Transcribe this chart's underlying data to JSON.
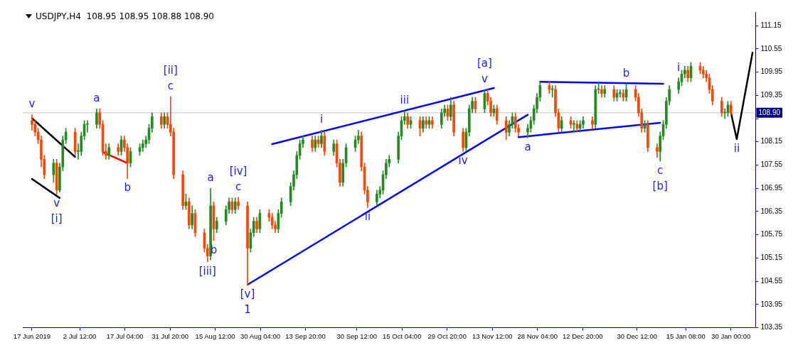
{
  "chart_data": {
    "type": "candlestick",
    "title": "USDJPY,H4  108.95 108.95 108.88 108.90",
    "xlim": [
      "2019-06-14",
      "2020-02-07"
    ],
    "xticks": [
      {
        "value": "2019-06-17",
        "label": "17 Jun 2019"
      },
      {
        "value": "2019-07-02T12:00",
        "label": "2 Jul 12:00"
      },
      {
        "value": "2019-07-17T04:00",
        "label": "17 Jul 04:00"
      },
      {
        "value": "2019-07-31T20:00",
        "label": "31 Jul 20:00"
      },
      {
        "value": "2019-08-15T12:00",
        "label": "15 Aug 12:00"
      },
      {
        "value": "2019-08-30T04:00",
        "label": "30 Aug 04:00"
      },
      {
        "value": "2019-09-13T20:00",
        "label": "13 Sep 20:00"
      },
      {
        "value": "2019-09-30T12:00",
        "label": "30 Sep 12:00"
      },
      {
        "value": "2019-10-15T04:00",
        "label": "15 Oct 04:00"
      },
      {
        "value": "2019-10-29T20:00",
        "label": "29 Oct 20:00"
      },
      {
        "value": "2019-11-13T12:00",
        "label": "13 Nov 12:00"
      },
      {
        "value": "2019-11-28T04:00",
        "label": "28 Nov 04:00"
      },
      {
        "value": "2019-12-12T20:00",
        "label": "12 Dec 20:00"
      },
      {
        "value": "2019-12-30T12:00",
        "label": "30 Dec 12:00"
      },
      {
        "value": "2020-01-15T08:00",
        "label": "15 Jan 08:00"
      },
      {
        "value": "2020-01-30T00:00",
        "label": "30 Jan 00:00"
      }
    ],
    "ylim": [
      103.35,
      111.5
    ],
    "yticks": [
      103.35,
      103.95,
      104.55,
      105.15,
      105.75,
      106.35,
      106.95,
      107.55,
      108.15,
      {
        "value": 108.75,
        "label": null
      },
      109.35,
      109.95,
      110.55,
      111.15
    ],
    "ref_lines": [
      {
        "axis": "y",
        "value": 108.9,
        "label": "108.90",
        "color": "#c8c8c8"
      }
    ],
    "annotations": [
      {
        "text": "v",
        "x": "2019-06-17",
        "y": 108.85
      },
      {
        "text": "v",
        "x": "2019-06-25",
        "y": 106.8
      },
      {
        "text": "[i]",
        "x": "2019-06-25",
        "y": 106.8
      },
      {
        "text": "a",
        "x": "2019-07-08",
        "y": 109.0
      },
      {
        "text": "b",
        "x": "2019-07-18",
        "y": 107.2
      },
      {
        "text": "c",
        "x": "2019-08-01",
        "y": 109.32
      },
      {
        "text": "[ii]",
        "x": "2019-08-01",
        "y": 109.32
      },
      {
        "text": "a",
        "x": "2019-08-14",
        "y": 106.95
      },
      {
        "text": "b",
        "x": "2019-08-15",
        "y": 105.6
      },
      {
        "text": "[iii]",
        "x": "2019-08-13",
        "y": 105.05
      },
      {
        "text": "c",
        "x": "2019-08-23",
        "y": 106.72
      },
      {
        "text": "[iv]",
        "x": "2019-08-23",
        "y": 106.72
      },
      {
        "text": "[v]",
        "x": "2019-08-26",
        "y": 104.45
      },
      {
        "text": "1",
        "x": "2019-08-26",
        "y": 104.45
      },
      {
        "text": "i",
        "x": "2019-09-19",
        "y": 108.45
      },
      {
        "text": "ii",
        "x": "2019-10-04",
        "y": 106.45
      },
      {
        "text": "iii",
        "x": "2019-10-16",
        "y": 108.95
      },
      {
        "text": "iv",
        "x": "2019-11-04",
        "y": 107.9
      },
      {
        "text": "v",
        "x": "2019-11-11",
        "y": 109.5
      },
      {
        "text": "[a]",
        "x": "2019-11-11",
        "y": 109.5
      },
      {
        "text": "a",
        "x": "2019-11-25",
        "y": 108.25
      },
      {
        "text": "b",
        "x": "2019-12-27",
        "y": 109.65
      },
      {
        "text": "c",
        "x": "2020-01-07",
        "y": 107.65
      },
      {
        "text": "[b]",
        "x": "2020-01-07",
        "y": 107.65
      },
      {
        "text": "i",
        "x": "2020-01-13",
        "y": 109.8
      },
      {
        "text": "ii",
        "x": "2020-01-31T21:00",
        "y": 108.22
      }
    ],
    "series": [
      {
        "x": [
          "2019-06-17",
          "2019-06-18",
          "2019-06-19",
          "2019-06-20",
          "2019-06-21",
          "2019-06-24",
          "2019-06-25",
          "2019-06-26",
          "2019-06-27",
          "2019-06-28",
          "2019-07-01",
          "2019-07-02",
          "2019-07-03",
          "2019-07-04",
          "2019-07-05",
          "2019-07-08",
          "2019-07-09",
          "2019-07-10",
          "2019-07-11",
          "2019-07-12",
          "2019-07-15",
          "2019-07-16",
          "2019-07-17",
          "2019-07-18",
          "2019-07-19",
          "2019-07-22",
          "2019-07-23",
          "2019-07-24",
          "2019-07-25",
          "2019-07-26",
          "2019-07-29",
          "2019-07-30",
          "2019-07-31",
          "2019-08-01",
          "2019-08-02",
          "2019-08-05",
          "2019-08-06",
          "2019-08-07",
          "2019-08-08",
          "2019-08-09",
          "2019-08-12",
          "2019-08-13",
          "2019-08-14",
          "2019-08-15",
          "2019-08-16",
          "2019-08-19",
          "2019-08-20",
          "2019-08-21",
          "2019-08-22",
          "2019-08-23",
          "2019-08-26",
          "2019-08-27",
          "2019-08-28",
          "2019-08-29",
          "2019-08-30",
          "2019-09-02",
          "2019-09-03",
          "2019-09-04",
          "2019-09-05",
          "2019-09-06",
          "2019-09-09",
          "2019-09-10",
          "2019-09-11",
          "2019-09-12",
          "2019-09-13",
          "2019-09-16",
          "2019-09-17",
          "2019-09-18",
          "2019-09-19",
          "2019-09-20",
          "2019-09-23",
          "2019-09-24",
          "2019-09-25",
          "2019-09-26",
          "2019-09-27",
          "2019-09-30",
          "2019-10-01",
          "2019-10-02",
          "2019-10-03",
          "2019-10-04",
          "2019-10-07",
          "2019-10-08",
          "2019-10-09",
          "2019-10-10",
          "2019-10-11",
          "2019-10-14",
          "2019-10-15",
          "2019-10-16",
          "2019-10-17",
          "2019-10-18",
          "2019-10-21",
          "2019-10-22",
          "2019-10-23",
          "2019-10-24",
          "2019-10-25",
          "2019-10-28",
          "2019-10-29",
          "2019-10-30",
          "2019-10-31",
          "2019-11-01",
          "2019-11-04",
          "2019-11-05",
          "2019-11-06",
          "2019-11-07",
          "2019-11-08",
          "2019-11-11",
          "2019-11-12",
          "2019-11-13",
          "2019-11-14",
          "2019-11-15",
          "2019-11-18",
          "2019-11-19",
          "2019-11-20",
          "2019-11-21",
          "2019-11-22",
          "2019-11-25",
          "2019-11-26",
          "2019-11-27",
          "2019-11-28",
          "2019-11-29",
          "2019-12-02",
          "2019-12-03",
          "2019-12-04",
          "2019-12-05",
          "2019-12-06",
          "2019-12-09",
          "2019-12-10",
          "2019-12-11",
          "2019-12-12",
          "2019-12-13",
          "2019-12-16",
          "2019-12-17",
          "2019-12-18",
          "2019-12-19",
          "2019-12-20",
          "2019-12-23",
          "2019-12-24",
          "2019-12-25",
          "2019-12-26",
          "2019-12-27",
          "2019-12-30",
          "2019-12-31",
          "2020-01-01",
          "2020-01-02",
          "2020-01-03",
          "2020-01-06",
          "2020-01-07",
          "2020-01-08",
          "2020-01-09",
          "2020-01-10",
          "2020-01-13",
          "2020-01-14",
          "2020-01-15",
          "2020-01-16",
          "2020-01-17",
          "2020-01-20",
          "2020-01-21",
          "2020-01-22",
          "2020-01-23",
          "2020-01-24",
          "2020-01-27",
          "2020-01-28",
          "2020-01-29",
          "2020-01-30"
        ],
        "ohlc": [
          [
            108.7,
            108.85,
            108.45,
            108.6
          ],
          [
            108.6,
            108.7,
            108.3,
            108.4
          ],
          [
            108.4,
            108.5,
            108.1,
            108.2
          ],
          [
            108.2,
            108.3,
            107.5,
            107.7
          ],
          [
            107.7,
            107.8,
            107.2,
            107.3
          ],
          [
            107.3,
            107.7,
            107.1,
            107.6
          ],
          [
            107.6,
            107.7,
            106.8,
            106.9
          ],
          [
            106.9,
            107.6,
            106.85,
            107.5
          ],
          [
            107.5,
            108.3,
            107.4,
            108.2
          ],
          [
            108.2,
            108.5,
            108.1,
            108.4
          ],
          [
            108.4,
            108.5,
            107.8,
            107.9
          ],
          [
            107.9,
            108.1,
            107.7,
            107.9
          ],
          [
            107.9,
            108.4,
            107.8,
            108.3
          ],
          [
            108.3,
            108.7,
            108.2,
            108.6
          ],
          [
            108.6,
            108.7,
            108.4,
            108.6
          ],
          [
            108.6,
            109.0,
            108.5,
            108.9
          ],
          [
            108.9,
            109.0,
            108.5,
            108.6
          ],
          [
            108.6,
            108.7,
            107.8,
            107.9
          ],
          [
            107.9,
            108.1,
            107.7,
            107.8
          ],
          [
            107.8,
            108.1,
            107.7,
            108.0
          ],
          [
            108.0,
            108.1,
            107.8,
            107.9
          ],
          [
            107.9,
            108.3,
            107.8,
            108.2
          ],
          [
            108.2,
            108.3,
            107.9,
            108.0
          ],
          [
            108.0,
            108.1,
            107.2,
            107.6
          ],
          [
            107.6,
            108.0,
            107.5,
            107.9
          ],
          [
            107.9,
            108.1,
            107.8,
            108.0
          ],
          [
            108.0,
            108.2,
            107.9,
            108.1
          ],
          [
            108.1,
            108.3,
            108.0,
            108.2
          ],
          [
            108.2,
            108.6,
            108.1,
            108.5
          ],
          [
            108.5,
            108.9,
            108.4,
            108.8
          ],
          [
            108.8,
            108.9,
            108.5,
            108.6
          ],
          [
            108.6,
            108.9,
            108.5,
            108.8
          ],
          [
            108.8,
            108.9,
            108.5,
            108.6
          ],
          [
            108.6,
            109.32,
            108.3,
            108.4
          ],
          [
            108.4,
            108.5,
            107.2,
            107.3
          ],
          [
            107.3,
            107.4,
            106.4,
            106.5
          ],
          [
            106.5,
            106.8,
            106.4,
            106.6
          ],
          [
            106.6,
            106.7,
            105.9,
            106.0
          ],
          [
            106.0,
            106.5,
            105.9,
            106.3
          ],
          [
            106.3,
            106.4,
            105.7,
            105.8
          ],
          [
            105.8,
            105.9,
            105.3,
            105.4
          ],
          [
            105.4,
            105.5,
            105.05,
            105.2
          ],
          [
            105.2,
            106.95,
            105.1,
            106.5
          ],
          [
            106.5,
            106.6,
            105.6,
            105.9
          ],
          [
            105.9,
            106.2,
            105.8,
            106.1
          ],
          [
            106.1,
            106.5,
            106.0,
            106.4
          ],
          [
            106.4,
            106.7,
            106.3,
            106.6
          ],
          [
            106.6,
            106.7,
            106.3,
            106.4
          ],
          [
            106.4,
            106.7,
            106.3,
            106.6
          ],
          [
            106.6,
            106.72,
            106.4,
            106.5
          ],
          [
            106.5,
            106.6,
            104.45,
            105.4
          ],
          [
            105.4,
            105.9,
            105.3,
            105.8
          ],
          [
            105.8,
            106.2,
            105.7,
            106.1
          ],
          [
            106.1,
            106.2,
            105.8,
            105.9
          ],
          [
            105.9,
            106.4,
            105.8,
            106.3
          ],
          [
            106.3,
            106.4,
            106.1,
            106.2
          ],
          [
            106.2,
            106.3,
            105.9,
            106.0
          ],
          [
            106.0,
            106.1,
            105.8,
            105.9
          ],
          [
            105.9,
            106.4,
            105.8,
            106.3
          ],
          [
            106.3,
            106.7,
            106.2,
            106.6
          ],
          [
            106.6,
            107.1,
            106.5,
            107.0
          ],
          [
            107.0,
            107.4,
            106.9,
            107.3
          ],
          [
            107.3,
            107.9,
            107.2,
            107.8
          ],
          [
            107.8,
            108.2,
            107.7,
            108.1
          ],
          [
            108.1,
            108.3,
            108.0,
            108.2
          ],
          [
            108.2,
            108.3,
            107.9,
            108.0
          ],
          [
            108.0,
            108.3,
            107.9,
            108.2
          ],
          [
            108.2,
            108.3,
            108.0,
            108.1
          ],
          [
            108.1,
            108.45,
            108.0,
            108.3
          ],
          [
            108.3,
            108.4,
            107.8,
            107.9
          ],
          [
            107.9,
            108.2,
            107.8,
            108.1
          ],
          [
            108.1,
            108.2,
            107.5,
            107.6
          ],
          [
            107.6,
            107.7,
            107.0,
            107.1
          ],
          [
            107.1,
            107.7,
            107.0,
            107.6
          ],
          [
            107.6,
            108.1,
            107.5,
            108.0
          ],
          [
            108.0,
            108.3,
            107.9,
            108.2
          ],
          [
            108.2,
            108.45,
            108.1,
            108.3
          ],
          [
            108.3,
            108.4,
            107.4,
            107.5
          ],
          [
            107.5,
            107.6,
            106.8,
            106.9
          ],
          [
            106.9,
            107.0,
            106.45,
            106.6
          ],
          [
            106.6,
            106.9,
            106.5,
            106.8
          ],
          [
            106.8,
            107.0,
            106.7,
            106.9
          ],
          [
            106.9,
            107.4,
            106.8,
            107.3
          ],
          [
            107.3,
            107.7,
            107.2,
            107.6
          ],
          [
            107.6,
            107.8,
            107.5,
            107.7
          ],
          [
            107.7,
            108.4,
            107.6,
            108.3
          ],
          [
            108.3,
            108.8,
            108.2,
            108.7
          ],
          [
            108.7,
            108.95,
            108.6,
            108.8
          ],
          [
            108.8,
            108.9,
            108.5,
            108.6
          ],
          [
            108.6,
            108.8,
            108.5,
            108.7
          ],
          [
            108.7,
            108.8,
            108.3,
            108.5
          ],
          [
            108.5,
            108.8,
            108.4,
            108.7
          ],
          [
            108.7,
            108.8,
            108.5,
            108.6
          ],
          [
            108.6,
            108.8,
            108.5,
            108.7
          ],
          [
            108.7,
            108.8,
            108.5,
            108.6
          ],
          [
            108.6,
            109.0,
            108.5,
            108.9
          ],
          [
            108.9,
            109.1,
            108.8,
            109.0
          ],
          [
            109.0,
            109.1,
            108.7,
            108.8
          ],
          [
            108.8,
            109.3,
            108.7,
            109.1
          ],
          [
            109.1,
            109.2,
            108.3,
            108.4
          ],
          [
            108.4,
            108.5,
            107.9,
            108.0
          ],
          [
            108.0,
            108.5,
            107.9,
            108.4
          ],
          [
            108.4,
            109.1,
            108.3,
            109.0
          ],
          [
            109.0,
            109.3,
            108.9,
            109.2
          ],
          [
            109.2,
            109.3,
            108.9,
            109.0
          ],
          [
            109.0,
            109.5,
            108.9,
            109.4
          ],
          [
            109.4,
            109.5,
            109.1,
            109.2
          ],
          [
            109.2,
            109.3,
            108.8,
            108.9
          ],
          [
            108.9,
            109.1,
            108.8,
            109.0
          ],
          [
            109.0,
            109.1,
            108.6,
            108.7
          ],
          [
            108.7,
            108.8,
            108.2,
            108.4
          ],
          [
            108.4,
            108.7,
            108.3,
            108.6
          ],
          [
            108.6,
            108.9,
            108.5,
            108.8
          ],
          [
            108.8,
            108.9,
            108.4,
            108.5
          ],
          [
            108.5,
            108.6,
            108.3,
            108.4
          ],
          [
            108.4,
            108.6,
            108.25,
            108.5
          ],
          [
            108.5,
            108.8,
            108.4,
            108.7
          ],
          [
            108.7,
            109.1,
            108.6,
            109.0
          ],
          [
            109.0,
            109.4,
            108.9,
            109.3
          ],
          [
            109.3,
            109.7,
            109.2,
            109.6
          ],
          [
            109.6,
            109.7,
            109.4,
            109.5
          ],
          [
            109.5,
            109.6,
            109.3,
            109.5
          ],
          [
            109.5,
            109.6,
            108.8,
            108.9
          ],
          [
            108.9,
            109.0,
            108.4,
            108.5
          ],
          [
            108.5,
            108.8,
            108.4,
            108.7
          ],
          [
            108.7,
            108.8,
            108.5,
            108.6
          ],
          [
            108.6,
            108.7,
            108.4,
            108.6
          ],
          [
            108.6,
            108.7,
            108.4,
            108.5
          ],
          [
            108.5,
            108.7,
            108.4,
            108.6
          ],
          [
            108.6,
            108.8,
            108.5,
            108.7
          ],
          [
            108.7,
            108.8,
            108.5,
            108.6
          ],
          [
            108.6,
            109.6,
            108.5,
            109.5
          ],
          [
            109.5,
            109.7,
            109.4,
            109.5
          ],
          [
            109.5,
            109.6,
            109.3,
            109.4
          ],
          [
            109.4,
            109.6,
            109.3,
            109.5
          ],
          [
            109.5,
            109.6,
            109.2,
            109.3
          ],
          [
            109.3,
            109.5,
            109.2,
            109.4
          ],
          [
            109.4,
            109.5,
            109.3,
            109.4
          ],
          [
            109.4,
            109.5,
            109.2,
            109.3
          ],
          [
            109.3,
            109.65,
            109.2,
            109.5
          ],
          [
            109.5,
            109.6,
            109.2,
            109.3
          ],
          [
            109.3,
            109.4,
            108.8,
            108.9
          ],
          [
            108.9,
            109.0,
            108.4,
            108.5
          ],
          [
            108.5,
            108.7,
            108.4,
            108.6
          ],
          [
            108.6,
            108.7,
            107.9,
            108.0
          ],
          [
            108.0,
            108.1,
            107.75,
            107.9
          ],
          [
            107.9,
            108.4,
            107.65,
            108.3
          ],
          [
            108.3,
            108.7,
            108.2,
            108.6
          ],
          [
            108.6,
            109.3,
            108.5,
            109.2
          ],
          [
            109.2,
            109.6,
            109.1,
            109.5
          ],
          [
            109.5,
            109.8,
            109.4,
            109.7
          ],
          [
            109.7,
            110.0,
            109.6,
            109.9
          ],
          [
            109.9,
            110.1,
            109.8,
            110.0
          ],
          [
            110.0,
            110.1,
            109.7,
            109.8
          ],
          [
            109.8,
            110.2,
            109.7,
            110.1
          ],
          [
            110.1,
            110.2,
            109.9,
            110.0
          ],
          [
            110.0,
            110.1,
            109.8,
            109.9
          ],
          [
            109.9,
            110.0,
            109.7,
            109.8
          ],
          [
            109.8,
            109.9,
            109.4,
            109.5
          ],
          [
            109.5,
            109.6,
            109.1,
            109.2
          ],
          [
            109.2,
            109.3,
            108.8,
            108.9
          ],
          [
            108.9,
            109.0,
            108.75,
            108.9
          ],
          [
            108.9,
            109.2,
            108.8,
            109.1
          ],
          [
            109.1,
            109.2,
            108.85,
            108.9
          ]
        ],
        "colors": [
          "#ff4500",
          "#ff4500",
          "#ff4500",
          "#ff4500",
          "#ff4500",
          "#228b22",
          "#ff4500",
          "#228b22",
          "#228b22",
          "#228b22",
          "#ff4500",
          "#228b22",
          "#228b22",
          "#228b22",
          "#228b22",
          "#228b22",
          "#ff4500",
          "#ff4500",
          "#ff4500",
          "#228b22",
          "#ff4500",
          "#228b22",
          "#ff4500",
          "#ff4500",
          "#228b22",
          "#228b22",
          "#228b22",
          "#228b22",
          "#228b22",
          "#228b22",
          "#ff4500",
          "#228b22",
          "#ff4500",
          "#ff4500",
          "#ff4500",
          "#ff4500",
          "#228b22",
          "#ff4500",
          "#228b22",
          "#ff4500",
          "#ff4500",
          "#ff4500",
          "#228b22",
          "#ff4500",
          "#228b22",
          "#228b22",
          "#228b22",
          "#ff4500",
          "#228b22",
          "#ff4500",
          "#ff4500",
          "#228b22",
          "#228b22",
          "#ff4500",
          "#228b22",
          "#ff4500",
          "#ff4500",
          "#ff4500",
          "#228b22",
          "#228b22",
          "#228b22",
          "#228b22",
          "#228b22",
          "#228b22",
          "#228b22",
          "#ff4500",
          "#228b22",
          "#ff4500",
          "#228b22",
          "#ff4500",
          "#228b22",
          "#ff4500",
          "#ff4500",
          "#228b22",
          "#228b22",
          "#228b22",
          "#228b22",
          "#ff4500",
          "#ff4500",
          "#ff4500",
          "#228b22",
          "#228b22",
          "#228b22",
          "#228b22",
          "#228b22",
          "#228b22",
          "#228b22",
          "#228b22",
          "#ff4500",
          "#228b22",
          "#ff4500",
          "#228b22",
          "#ff4500",
          "#228b22",
          "#ff4500",
          "#228b22",
          "#228b22",
          "#ff4500",
          "#228b22",
          "#ff4500",
          "#ff4500",
          "#228b22",
          "#228b22",
          "#228b22",
          "#ff4500",
          "#228b22",
          "#ff4500",
          "#ff4500",
          "#228b22",
          "#ff4500",
          "#ff4500",
          "#228b22",
          "#228b22",
          "#ff4500",
          "#ff4500",
          "#228b22",
          "#228b22",
          "#228b22",
          "#228b22",
          "#228b22",
          "#ff4500",
          "#228b22",
          "#ff4500",
          "#ff4500",
          "#228b22",
          "#ff4500",
          "#228b22",
          "#ff4500",
          "#228b22",
          "#228b22",
          "#ff4500",
          "#228b22",
          "#228b22",
          "#ff4500",
          "#228b22",
          "#ff4500",
          "#228b22",
          "#228b22",
          "#ff4500",
          "#228b22",
          "#ff4500",
          "#ff4500",
          "#ff4500",
          "#228b22",
          "#ff4500",
          "#ff4500",
          "#228b22",
          "#228b22",
          "#228b22",
          "#228b22",
          "#228b22",
          "#228b22",
          "#228b22",
          "#ff4500",
          "#228b22",
          "#ff4500",
          "#ff4500",
          "#ff4500",
          "#ff4500",
          "#ff4500",
          "#ff4500",
          "#228b22",
          "#228b22",
          "#ff4500"
        ]
      },
      {
        "type": "line",
        "color": "#000000",
        "x": [
          "2019-06-17",
          "2019-07-01"
        ],
        "values": [
          108.76,
          107.76
        ]
      },
      {
        "type": "line",
        "color": "#000000",
        "x": [
          "2019-06-17",
          "2019-06-26"
        ],
        "values": [
          107.19,
          106.7
        ]
      },
      {
        "type": "line",
        "color": "#ff0000",
        "x": [
          "2019-07-10",
          "2019-07-18"
        ],
        "values": [
          107.88,
          107.6
        ]
      },
      {
        "type": "line",
        "color": "#0000ff",
        "x": [
          "2019-08-26",
          "2019-11-25"
        ],
        "values": [
          104.46,
          108.85
        ]
      },
      {
        "type": "line",
        "color": "#0000ff",
        "x": [
          "2019-09-03",
          "2019-11-14"
        ],
        "values": [
          108.09,
          109.54
        ]
      },
      {
        "type": "line",
        "color": "#0000ff",
        "x": [
          "2019-11-29",
          "2020-01-08"
        ],
        "values": [
          109.7,
          109.65
        ]
      },
      {
        "type": "line",
        "color": "#0000ff",
        "x": [
          "2019-11-22",
          "2020-01-07"
        ],
        "values": [
          108.27,
          108.64
        ]
      },
      {
        "type": "line",
        "color": "#000000",
        "x": [
          "2020-01-30",
          "2020-01-31T21:00",
          "2020-02-06"
        ],
        "values": [
          108.9,
          108.22,
          110.45
        ]
      }
    ]
  }
}
